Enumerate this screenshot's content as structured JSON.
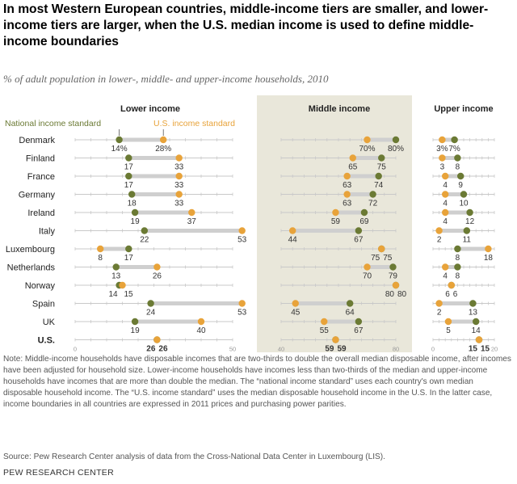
{
  "title": "In most Western European countries, middle-income tiers are smaller, and lower-income tiers are larger, when the U.S. median income is used to define middle-income boundaries",
  "subtitle": "% of adult population in lower-, middle- and upper-income households, 2010",
  "colors": {
    "national": "#6b7a34",
    "us": "#e8a33a",
    "connector": "#cfcfcf",
    "middle_panel_bg": "#e9e7da",
    "axis": "#999999"
  },
  "legend": {
    "national": "National income standard",
    "us": "U.S. income standard"
  },
  "chart_data": {
    "type": "dot-plot",
    "countries": [
      "Denmark",
      "Finland",
      "France",
      "Germany",
      "Ireland",
      "Italy",
      "Luxembourg",
      "Netherlands",
      "Norway",
      "Spain",
      "UK",
      "U.S."
    ],
    "panels": [
      {
        "title": "Lower income",
        "xlim": [
          0,
          50
        ],
        "ticks": [
          "0",
          "50"
        ],
        "national": [
          14,
          17,
          17,
          18,
          19,
          22,
          17,
          13,
          14,
          24,
          19,
          26
        ],
        "us": [
          28,
          33,
          33,
          33,
          37,
          53,
          8,
          26,
          15,
          53,
          40,
          26
        ],
        "national_labels": [
          "14%",
          "17",
          "17",
          "18",
          "19",
          "22",
          "17",
          "13",
          "14",
          "24",
          "19",
          "26"
        ],
        "us_labels": [
          "28%",
          "33",
          "33",
          "33",
          "37",
          "53",
          "8",
          "26",
          "15",
          "53",
          "40",
          "26"
        ]
      },
      {
        "title": "Middle income",
        "xlim": [
          40,
          80
        ],
        "ticks": [
          "40",
          "80"
        ],
        "national": [
          80,
          75,
          74,
          72,
          69,
          67,
          75,
          79,
          80,
          64,
          67,
          59
        ],
        "us": [
          70,
          65,
          63,
          63,
          59,
          44,
          75,
          70,
          80,
          45,
          55,
          59
        ],
        "national_labels": [
          "80%",
          "75",
          "74",
          "72",
          "69",
          "67",
          "75",
          "79",
          "80",
          "64",
          "67",
          "59"
        ],
        "us_labels": [
          "70%",
          "65",
          "63",
          "63",
          "59",
          "44",
          "75",
          "70",
          "80",
          "45",
          "55",
          "59"
        ]
      },
      {
        "title": "Upper income",
        "xlim": [
          0,
          20
        ],
        "ticks": [
          "0",
          "20"
        ],
        "national": [
          7,
          8,
          9,
          10,
          12,
          11,
          8,
          8,
          6,
          13,
          14,
          15
        ],
        "us": [
          3,
          3,
          4,
          4,
          4,
          2,
          18,
          4,
          6,
          2,
          5,
          15
        ],
        "national_labels": [
          "7%",
          "8",
          "9",
          "10",
          "12",
          "11",
          "8",
          "8",
          "6",
          "13",
          "14",
          "15"
        ],
        "us_labels": [
          "3%",
          "3",
          "4",
          "4",
          "4",
          "2",
          "18",
          "4",
          "6",
          "2",
          "5",
          "15"
        ]
      }
    ]
  },
  "note": "Note: Middle-income households have disposable incomes that are two-thirds to double the overall median disposable income, after incomes have been adjusted for household size. Lower-income households have incomes less than two-thirds of the median and upper-income households have incomes that are more than double the median. The “national income standard” uses each country's own median disposable household income. The “U.S. income standard” uses the median disposable household income in the U.S. In the latter case, income boundaries in all countries are expressed in 2011 prices and purchasing power parities.",
  "source": "Source: Pew Research Center analysis of data from the Cross-National Data Center in Luxembourg (LIS).",
  "credit": "PEW RESEARCH CENTER"
}
